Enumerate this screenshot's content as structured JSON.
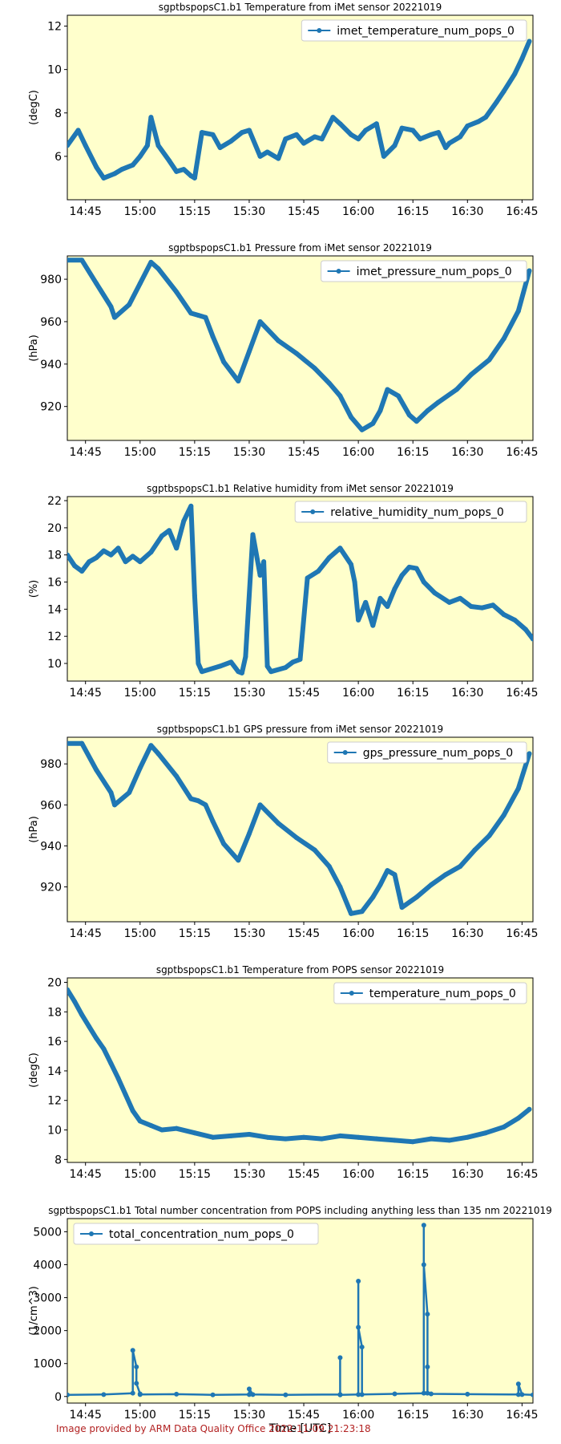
{
  "footer": "Image provided by ARM Data Quality Office 2022-11-09 21:23:18",
  "xlabel_shared": "Time [UTC]",
  "colors": {
    "plot_bg": "#ffffcc",
    "line": "#1f77b4",
    "footer": "#b22222"
  },
  "chart_data": [
    {
      "type": "line",
      "title": "sgptbspopsC1.b1 Temperature from iMet sensor 20221019",
      "ylabel": "(degC)",
      "xlabel": "",
      "legend": "top-right",
      "ylim": [
        4.0,
        12.5
      ],
      "yticks": [
        6,
        8,
        10,
        12
      ],
      "x_range": [
        "14:40",
        "16:48"
      ],
      "xticks": [
        "14:45",
        "15:00",
        "15:15",
        "15:30",
        "15:45",
        "16:00",
        "16:15",
        "16:30",
        "16:45"
      ],
      "series": [
        {
          "name": "imet_temperature_num_pops_0",
          "x": [
            "14:40",
            "14:43",
            "14:45",
            "14:48",
            "14:50",
            "14:53",
            "14:55",
            "14:58",
            "15:00",
            "15:02",
            "15:03",
            "15:05",
            "15:08",
            "15:10",
            "15:12",
            "15:14",
            "15:15",
            "15:17",
            "15:20",
            "15:22",
            "15:25",
            "15:28",
            "15:30",
            "15:33",
            "15:35",
            "15:38",
            "15:40",
            "15:43",
            "15:45",
            "15:48",
            "15:50",
            "15:53",
            "15:55",
            "15:58",
            "16:00",
            "16:02",
            "16:05",
            "16:07",
            "16:10",
            "16:12",
            "16:15",
            "16:17",
            "16:20",
            "16:22",
            "16:24",
            "16:25",
            "16:28",
            "16:30",
            "16:33",
            "16:35",
            "16:38",
            "16:40",
            "16:43",
            "16:45",
            "16:47"
          ],
          "y": [
            6.5,
            7.2,
            6.5,
            5.5,
            5.0,
            5.2,
            5.4,
            5.6,
            6.0,
            6.5,
            7.8,
            6.5,
            5.8,
            5.3,
            5.4,
            5.1,
            5.0,
            7.1,
            7.0,
            6.4,
            6.7,
            7.1,
            7.2,
            6.0,
            6.2,
            5.9,
            6.8,
            7.0,
            6.6,
            6.9,
            6.8,
            7.8,
            7.5,
            7.0,
            6.8,
            7.2,
            7.5,
            6.0,
            6.5,
            7.3,
            7.2,
            6.8,
            7.0,
            7.1,
            6.4,
            6.6,
            6.9,
            7.4,
            7.6,
            7.8,
            8.5,
            9.0,
            9.8,
            10.5,
            11.3
          ]
        }
      ]
    },
    {
      "type": "line",
      "title": "sgptbspopsC1.b1 Pressure from iMet sensor 20221019",
      "ylabel": "(hPa)",
      "xlabel": "",
      "legend": "top-right",
      "ylim": [
        904,
        991
      ],
      "yticks": [
        920,
        940,
        960,
        980
      ],
      "x_range": [
        "14:40",
        "16:48"
      ],
      "xticks": [
        "14:45",
        "15:00",
        "15:15",
        "15:30",
        "15:45",
        "16:00",
        "16:15",
        "16:30",
        "16:45"
      ],
      "series": [
        {
          "name": "imet_pressure_num_pops_0",
          "x": [
            "14:40",
            "14:44",
            "14:48",
            "14:52",
            "14:53",
            "14:57",
            "15:00",
            "15:03",
            "15:05",
            "15:10",
            "15:14",
            "15:16",
            "15:18",
            "15:20",
            "15:23",
            "15:27",
            "15:30",
            "15:33",
            "15:38",
            "15:43",
            "15:48",
            "15:52",
            "15:55",
            "15:58",
            "16:01",
            "16:04",
            "16:06",
            "16:08",
            "16:11",
            "16:14",
            "16:16",
            "16:19",
            "16:22",
            "16:27",
            "16:31",
            "16:36",
            "16:40",
            "16:44",
            "16:47"
          ],
          "y": [
            989,
            989,
            978,
            967,
            962,
            968,
            978,
            988,
            985,
            974,
            964,
            963,
            962,
            953,
            941,
            932,
            946,
            960,
            951,
            945,
            938,
            931,
            925,
            915,
            909,
            912,
            918,
            928,
            925,
            916,
            913,
            918,
            922,
            928,
            935,
            942,
            952,
            965,
            984
          ]
        }
      ]
    },
    {
      "type": "line",
      "title": "sgptbspopsC1.b1 Relative humidity from iMet sensor 20221019",
      "ylabel": "(%)",
      "xlabel": "",
      "legend": "top-right",
      "ylim": [
        8.7,
        22.3
      ],
      "yticks": [
        10,
        12,
        14,
        16,
        18,
        20,
        22
      ],
      "x_range": [
        "14:40",
        "16:48"
      ],
      "xticks": [
        "14:45",
        "15:00",
        "15:15",
        "15:30",
        "15:45",
        "16:00",
        "16:15",
        "16:30",
        "16:45"
      ],
      "series": [
        {
          "name": "relative_humidity_num_pops_0",
          "x": [
            "14:40",
            "14:42",
            "14:44",
            "14:46",
            "14:48",
            "14:50",
            "14:52",
            "14:54",
            "14:56",
            "14:58",
            "15:00",
            "15:03",
            "15:06",
            "15:08",
            "15:10",
            "15:12",
            "15:14",
            "15:15",
            "15:16",
            "15:17",
            "15:22",
            "15:25",
            "15:27",
            "15:28",
            "15:29",
            "15:31",
            "15:33",
            "15:34",
            "15:35",
            "15:36",
            "15:40",
            "15:42",
            "15:44",
            "15:46",
            "15:49",
            "15:52",
            "15:55",
            "15:58",
            "15:59",
            "16:00",
            "16:02",
            "16:04",
            "16:06",
            "16:08",
            "16:10",
            "16:12",
            "16:14",
            "16:16",
            "16:18",
            "16:21",
            "16:25",
            "16:28",
            "16:31",
            "16:34",
            "16:37",
            "16:40",
            "16:43",
            "16:46",
            "16:48"
          ],
          "y": [
            18.0,
            17.2,
            16.8,
            17.5,
            17.8,
            18.3,
            18.0,
            18.5,
            17.5,
            17.9,
            17.5,
            18.2,
            19.4,
            19.8,
            18.5,
            20.5,
            21.6,
            15.0,
            10.0,
            9.4,
            9.8,
            10.1,
            9.4,
            9.3,
            10.5,
            19.5,
            16.5,
            17.5,
            9.8,
            9.4,
            9.7,
            10.1,
            10.3,
            16.3,
            16.8,
            17.8,
            18.5,
            17.3,
            16.0,
            13.2,
            14.5,
            12.8,
            14.8,
            14.2,
            15.5,
            16.5,
            17.1,
            17.0,
            16.0,
            15.2,
            14.5,
            14.8,
            14.2,
            14.1,
            14.3,
            13.6,
            13.2,
            12.5,
            11.8
          ]
        }
      ]
    },
    {
      "type": "line",
      "title": "sgptbspopsC1.b1 GPS pressure from iMet sensor 20221019",
      "ylabel": "(hPa)",
      "xlabel": "",
      "legend": "top-right",
      "ylim": [
        903,
        993
      ],
      "yticks": [
        920,
        940,
        960,
        980
      ],
      "x_range": [
        "14:40",
        "16:48"
      ],
      "xticks": [
        "14:45",
        "15:00",
        "15:15",
        "15:30",
        "15:45",
        "16:00",
        "16:15",
        "16:30",
        "16:45"
      ],
      "series": [
        {
          "name": "gps_pressure_num_pops_0",
          "x": [
            "14:40",
            "14:44",
            "14:48",
            "14:52",
            "14:53",
            "14:57",
            "15:00",
            "15:03",
            "15:05",
            "15:10",
            "15:14",
            "15:16",
            "15:18",
            "15:20",
            "15:23",
            "15:27",
            "15:30",
            "15:33",
            "15:38",
            "15:43",
            "15:48",
            "15:52",
            "15:55",
            "15:58",
            "16:01",
            "16:04",
            "16:06",
            "16:08",
            "16:10",
            "16:12",
            "16:16",
            "16:20",
            "16:24",
            "16:28",
            "16:32",
            "16:36",
            "16:40",
            "16:44",
            "16:47"
          ],
          "y": [
            990,
            990,
            977,
            966,
            960,
            966,
            978,
            989,
            985,
            974,
            963,
            962,
            960,
            952,
            941,
            933,
            946,
            960,
            951,
            944,
            938,
            930,
            920,
            907,
            908,
            915,
            921,
            928,
            926,
            910,
            915,
            921,
            926,
            930,
            938,
            945,
            955,
            968,
            985
          ]
        }
      ]
    },
    {
      "type": "line",
      "title": "sgptbspopsC1.b1 Temperature from POPS sensor 20221019",
      "ylabel": "(degC)",
      "xlabel": "",
      "legend": "top-right",
      "ylim": [
        7.8,
        20.3
      ],
      "yticks": [
        8,
        10,
        12,
        14,
        16,
        18,
        20
      ],
      "x_range": [
        "14:40",
        "16:48"
      ],
      "xticks": [
        "14:45",
        "15:00",
        "15:15",
        "15:30",
        "15:45",
        "16:00",
        "16:15",
        "16:30",
        "16:45"
      ],
      "series": [
        {
          "name": "temperature_num_pops_0",
          "x": [
            "14:40",
            "14:42",
            "14:44",
            "14:46",
            "14:48",
            "14:50",
            "14:52",
            "14:54",
            "14:56",
            "14:58",
            "15:00",
            "15:03",
            "15:06",
            "15:10",
            "15:15",
            "15:20",
            "15:25",
            "15:30",
            "15:35",
            "15:40",
            "15:45",
            "15:50",
            "15:55",
            "16:00",
            "16:05",
            "16:10",
            "16:15",
            "16:20",
            "16:25",
            "16:30",
            "16:35",
            "16:40",
            "16:44",
            "16:47"
          ],
          "y": [
            19.5,
            18.7,
            17.8,
            17.0,
            16.2,
            15.5,
            14.5,
            13.5,
            12.4,
            11.3,
            10.6,
            10.3,
            10.0,
            10.1,
            9.8,
            9.5,
            9.6,
            9.7,
            9.5,
            9.4,
            9.5,
            9.4,
            9.6,
            9.5,
            9.4,
            9.3,
            9.2,
            9.4,
            9.3,
            9.5,
            9.8,
            10.2,
            10.8,
            11.4
          ]
        }
      ]
    },
    {
      "type": "line",
      "title": "sgptbspopsC1.b1 Total number concentration from POPS including anything less than 135 nm 20221019",
      "ylabel": "(1/cm^3)",
      "xlabel": "Time [UTC]",
      "legend": "top-left",
      "ylim": [
        -200,
        5400
      ],
      "yticks": [
        0,
        1000,
        2000,
        3000,
        4000,
        5000
      ],
      "x_range": [
        "14:40",
        "16:48"
      ],
      "xticks": [
        "14:45",
        "15:00",
        "15:15",
        "15:30",
        "15:45",
        "16:00",
        "16:15",
        "16:30",
        "16:45"
      ],
      "series": [
        {
          "name": "total_concentration_num_pops_0",
          "x": [
            "14:40",
            "14:50",
            "14:58",
            "14:58",
            "14:59",
            "14:59",
            "15:00",
            "15:00",
            "15:10",
            "15:20",
            "15:30",
            "15:30",
            "15:31",
            "15:40",
            "15:55",
            "15:55",
            "15:55",
            "16:00",
            "16:00",
            "16:00",
            "16:01",
            "16:01",
            "16:10",
            "16:18",
            "16:18",
            "16:18",
            "16:19",
            "16:19",
            "16:19",
            "16:20",
            "16:30",
            "16:44",
            "16:44",
            "16:45",
            "16:48"
          ],
          "y": [
            50,
            60,
            100,
            1400,
            900,
            400,
            80,
            60,
            70,
            50,
            60,
            230,
            60,
            50,
            60,
            1180,
            50,
            60,
            3500,
            2100,
            1500,
            60,
            80,
            100,
            5200,
            4000,
            2500,
            900,
            100,
            80,
            70,
            60,
            380,
            60,
            50
          ]
        }
      ]
    }
  ]
}
